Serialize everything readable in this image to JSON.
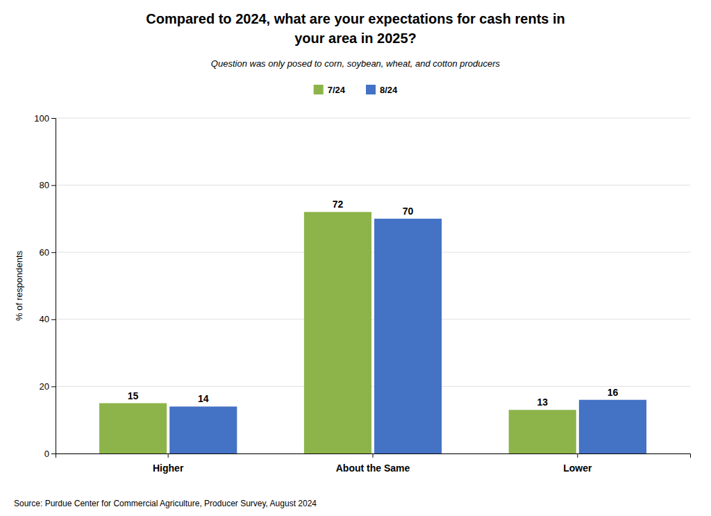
{
  "chart_data": {
    "type": "bar",
    "title": [
      "Compared to 2024, what are your expectations for cash rents in",
      "your area in 2025?"
    ],
    "subtitle": "Question was only posed to corn, soybean, wheat, and cotton producers",
    "ylabel": "% of respondents",
    "annotations": [
      "Source: Purdue Center for Commercial Agriculture, Producer Survey, August 2024"
    ],
    "categories": [
      "Higher",
      "About the Same",
      "Lower"
    ],
    "series": [
      {
        "name": "7/24",
        "color": "#8db44a",
        "values": [
          15,
          72,
          13
        ]
      },
      {
        "name": "8/24",
        "color": "#4472c4",
        "values": [
          14,
          70,
          16
        ]
      }
    ],
    "ylim": [
      0,
      100
    ],
    "yticks": [
      0,
      20,
      40,
      60,
      80,
      100
    ],
    "grid": true,
    "legend": "top",
    "data_labels": true
  }
}
